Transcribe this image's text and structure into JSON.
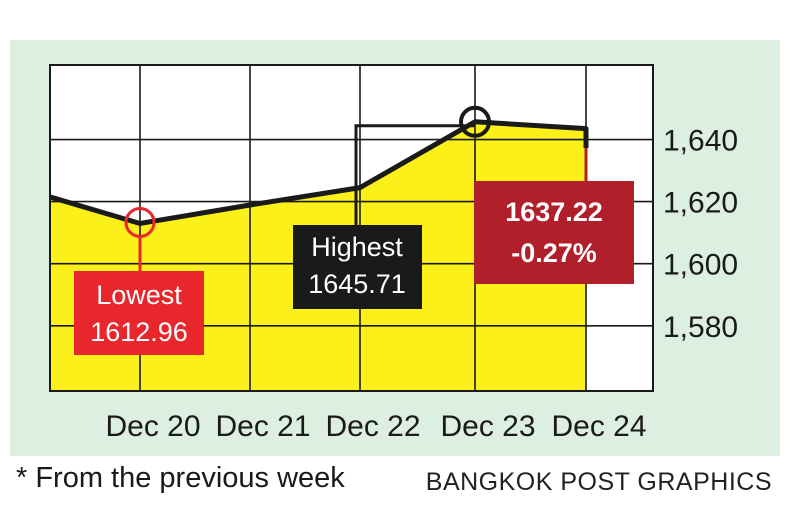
{
  "chart_data": {
    "type": "line",
    "categories": [
      "Dec 20",
      "Dec 21",
      "Dec 22",
      "Dec 23",
      "Dec 24"
    ],
    "points": [
      {
        "x": "Dec 19",
        "y": 1621.5
      },
      {
        "x": "Dec 20",
        "y": 1612.96
      },
      {
        "x": "Dec 21",
        "y": 1618.9
      },
      {
        "x": "Dec 22",
        "y": 1624.5
      },
      {
        "x": "Dec 23",
        "y": 1645.71
      },
      {
        "x": "Dec 24",
        "y": 1643.5
      },
      {
        "x": "Dec 24",
        "y": 1637.22
      }
    ],
    "ylim": [
      1559,
      1664
    ],
    "yticks": [
      1580,
      1600,
      1620,
      1640
    ],
    "ytick_labels": [
      "1,580",
      "1,600",
      "1,620",
      "1,640"
    ],
    "grid": true,
    "annotations": {
      "lowest": {
        "label": "Lowest",
        "value": "1612.96",
        "x": "Dec 20",
        "y": 1612.96
      },
      "highest": {
        "label": "Highest",
        "value": "1645.71",
        "x": "Dec 23",
        "y": 1645.71
      },
      "close": {
        "value": "1637.22",
        "change": "-0.27%",
        "x": "Dec 24",
        "y": 1637.22
      }
    }
  },
  "colors": {
    "background": "#dcefe0",
    "plot_bg": "#ffffff",
    "area_fill": "#fbf01a",
    "line": "#1a1a1a",
    "lowest_callout": "#e8262b",
    "highest_callout": "#1a1a1a",
    "close_callout": "#b01f2a"
  },
  "footer": {
    "footnote": "* From the previous week",
    "credit": "BANGKOK POST GRAPHICS"
  }
}
